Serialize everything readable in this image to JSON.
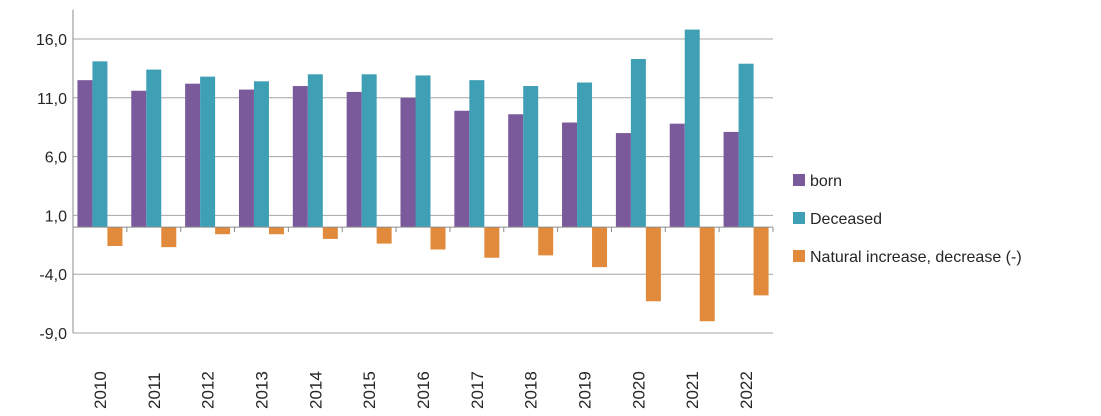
{
  "chart_data": {
    "type": "bar",
    "categories": [
      "2010",
      "2011",
      "2012",
      "2013",
      "2014",
      "2015",
      "2016",
      "2017",
      "2018",
      "2019",
      "2020",
      "2021",
      "2022"
    ],
    "series": [
      {
        "name": "born",
        "color": "#7a5a9a",
        "values": [
          12.5,
          11.6,
          12.2,
          11.7,
          12.0,
          11.5,
          11.0,
          9.9,
          9.6,
          8.9,
          8.0,
          8.8,
          8.1
        ]
      },
      {
        "name": "Deceased",
        "color": "#3f9fb4",
        "values": [
          14.1,
          13.4,
          12.8,
          12.4,
          13.0,
          13.0,
          12.9,
          12.5,
          12.0,
          12.3,
          14.3,
          16.8,
          13.9
        ]
      },
      {
        "name": "Natural increase, decrease (-)",
        "color": "#e28a3c",
        "values": [
          -1.6,
          -1.7,
          -0.6,
          -0.6,
          -1.0,
          -1.4,
          -1.9,
          -2.6,
          -2.4,
          -3.4,
          -6.3,
          -8.0,
          -5.8
        ]
      }
    ],
    "yticks": [
      "16,0",
      "11,0",
      "6,0",
      "1,0",
      "-4,0",
      "-9,0"
    ],
    "ytick_values": [
      16,
      11,
      6,
      1,
      -4,
      -9
    ],
    "ylim": [
      -9,
      18.5
    ],
    "baseline": 0,
    "grid": true,
    "legend_position": "right",
    "title": "",
    "xlabel": "",
    "ylabel": ""
  }
}
